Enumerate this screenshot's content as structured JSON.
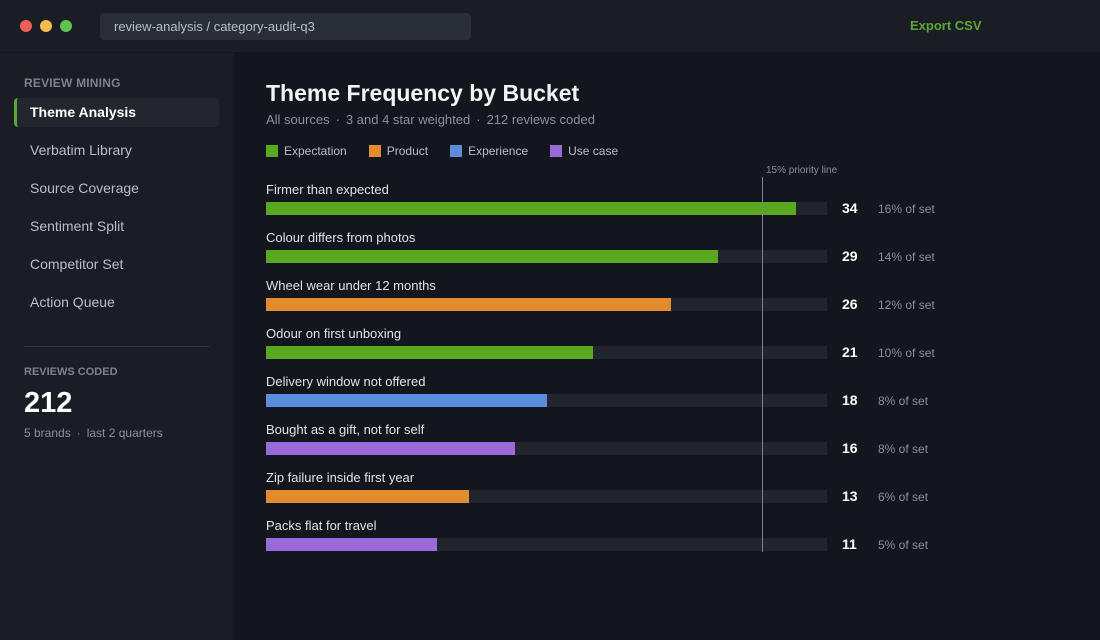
{
  "window": {
    "address": "review-analysis / category-audit-q3",
    "export_label": "Export CSV"
  },
  "sidebar": {
    "heading": "REVIEW MINING",
    "items": [
      {
        "label": "Theme Analysis",
        "active": true
      },
      {
        "label": "Verbatim Library",
        "active": false
      },
      {
        "label": "Source Coverage",
        "active": false
      },
      {
        "label": "Sentiment Split",
        "active": false
      },
      {
        "label": "Competitor Set",
        "active": false
      },
      {
        "label": "Action Queue",
        "active": false
      }
    ],
    "stat": {
      "label": "REVIEWS CODED",
      "value": "212",
      "sub_1": "5 brands",
      "sub_2": "last 2 quarters"
    }
  },
  "main": {
    "title": "Theme Frequency by Bucket",
    "subtitle": [
      "All sources",
      "3 and 4 star weighted",
      "212 reviews coded"
    ]
  },
  "colors": {
    "Expectation": "#5aa81e",
    "Product": "#e18c2e",
    "Experience": "#5b8ddd",
    "Use case": "#9a6ad8"
  },
  "chart_data": {
    "type": "bar",
    "orientation": "horizontal",
    "legend": [
      "Expectation",
      "Product",
      "Experience",
      "Use case"
    ],
    "legend_position": "top-left",
    "xlim": [
      0,
      36
    ],
    "reference_line": {
      "label": "15% priority line",
      "value": 31.8
    },
    "rows": [
      {
        "label": "Firmer than expected",
        "count": 34,
        "pct_label": "16% of set",
        "bucket": "Expectation"
      },
      {
        "label": "Colour differs from photos",
        "count": 29,
        "pct_label": "14% of set",
        "bucket": "Expectation"
      },
      {
        "label": "Wheel wear under 12 months",
        "count": 26,
        "pct_label": "12% of set",
        "bucket": "Product"
      },
      {
        "label": "Odour on first unboxing",
        "count": 21,
        "pct_label": "10% of set",
        "bucket": "Expectation"
      },
      {
        "label": "Delivery window not offered",
        "count": 18,
        "pct_label": "8% of set",
        "bucket": "Experience"
      },
      {
        "label": "Bought as a gift, not for self",
        "count": 16,
        "pct_label": "8% of set",
        "bucket": "Use case"
      },
      {
        "label": "Zip failure inside first year",
        "count": 13,
        "pct_label": "6% of set",
        "bucket": "Product"
      },
      {
        "label": "Packs flat for travel",
        "count": 11,
        "pct_label": "5% of set",
        "bucket": "Use case"
      }
    ]
  }
}
